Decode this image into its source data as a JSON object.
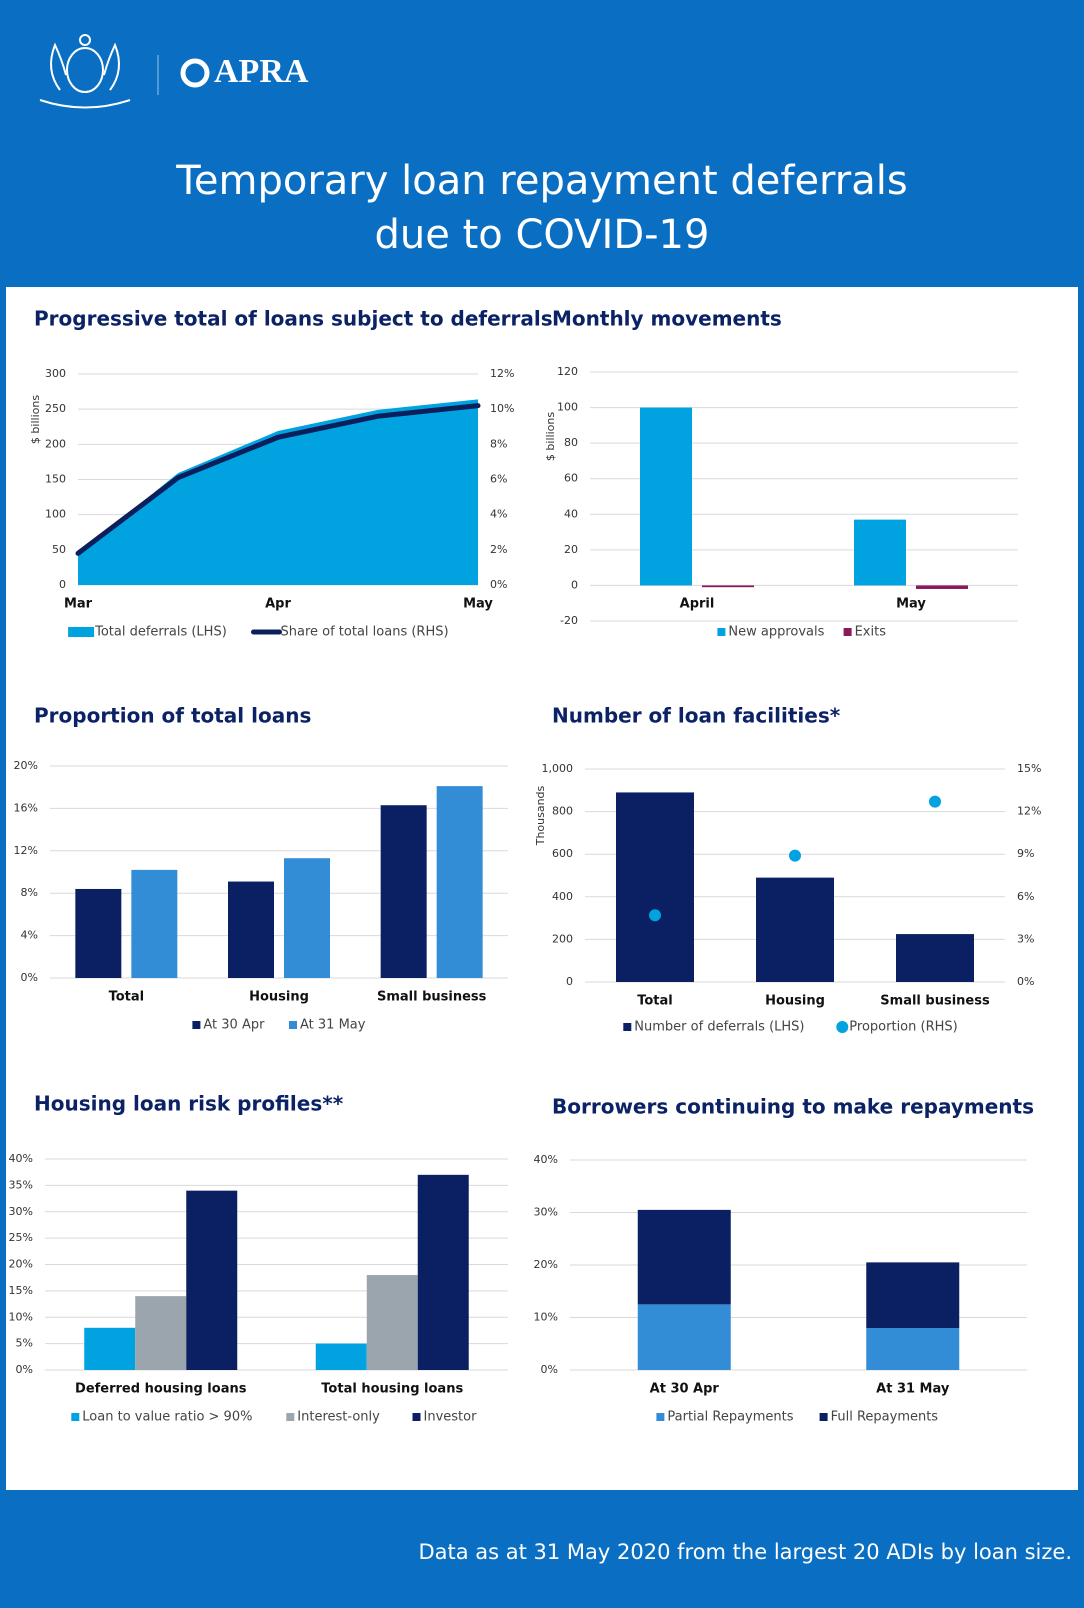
{
  "header": {
    "logo": "APRA",
    "title": [
      "Temporary loan repayment deferrals",
      "due to COVID-19"
    ]
  },
  "footer": "Data as at 31 May 2020 from the largest 20 ADIs by loan size.",
  "chart_data": [
    {
      "type": "combo",
      "title": "Progressive total of loans subject to deferrals",
      "y_label": "$ billions",
      "categories": [
        "Mar",
        null,
        "Apr",
        null,
        "May"
      ],
      "series": [
        {
          "name": "Total deferrals (LHS)",
          "type": "area",
          "color": "#00a3e0",
          "values": [
            44,
            159,
            219,
            249,
            264
          ]
        },
        {
          "name": "Share of total loans (RHS)",
          "type": "line",
          "axis": "y2",
          "color": "#0b1f5c",
          "values": [
            1.8,
            6.1,
            8.4,
            9.6,
            10.2
          ]
        }
      ],
      "ylim": [
        0,
        300
      ],
      "yticks": [
        0,
        50,
        100,
        150,
        200,
        250,
        300
      ],
      "y2lim": [
        0,
        12
      ],
      "y2ticks": [
        {
          "value": 0,
          "label": "0%"
        },
        {
          "value": 2,
          "label": "2%"
        },
        {
          "value": 4,
          "label": "4%"
        },
        {
          "value": 6,
          "label": "6%"
        },
        {
          "value": 8,
          "label": "8%"
        },
        {
          "value": 10,
          "label": "10%"
        },
        {
          "value": 12,
          "label": "12%"
        }
      ],
      "grid": true
    },
    {
      "type": "bar",
      "title": "Monthly movements",
      "y_label": "$ billions",
      "categories": [
        "April",
        "May"
      ],
      "series": [
        {
          "name": "New approvals",
          "color": "#00a3e0",
          "values": [
            100,
            37
          ]
        },
        {
          "name": "Exits",
          "color": "#8b1a5c",
          "values": [
            -1,
            -2
          ]
        }
      ],
      "ylim": [
        -20,
        120
      ],
      "yticks": [
        -20,
        0,
        20,
        40,
        60,
        80,
        100,
        120
      ],
      "grid": true
    },
    {
      "type": "bar",
      "title": "Proportion of total loans",
      "categories": [
        "Total",
        "Housing",
        "Small business"
      ],
      "series": [
        {
          "name": "At 30 Apr",
          "color": "#0b2062",
          "values": [
            8.4,
            9.1,
            16.3
          ]
        },
        {
          "name": "At 31 May",
          "color": "#338dd6",
          "values": [
            10.2,
            11.3,
            18.1
          ]
        }
      ],
      "ylim": [
        0,
        20
      ],
      "yticks": [
        {
          "value": 0,
          "label": "0%"
        },
        {
          "value": 4,
          "label": "4%"
        },
        {
          "value": 8,
          "label": "8%"
        },
        {
          "value": 12,
          "label": "12%"
        },
        {
          "value": 16,
          "label": "16%"
        },
        {
          "value": 20,
          "label": "20%"
        }
      ],
      "grid": true
    },
    {
      "type": "combo",
      "title": "Number of loan facilities*",
      "y_label": "Thousands",
      "categories": [
        "Total",
        "Housing",
        "Small business"
      ],
      "series": [
        {
          "name": "Number of deferrals (LHS)",
          "type": "bar",
          "color": "#0b2062",
          "values": [
            890,
            490,
            225
          ]
        },
        {
          "name": "Proportion (RHS)",
          "type": "scatter",
          "axis": "y2",
          "color": "#00a3e0",
          "values": [
            4.7,
            8.9,
            12.7
          ]
        }
      ],
      "ylim": [
        0,
        1000
      ],
      "yticks": [
        0,
        200,
        400,
        600,
        800,
        {
          "value": 1000,
          "label": "1,000"
        }
      ],
      "y2lim": [
        0,
        15
      ],
      "y2ticks": [
        {
          "value": 0,
          "label": "0%"
        },
        {
          "value": 3,
          "label": "3%"
        },
        {
          "value": 6,
          "label": "6%"
        },
        {
          "value": 9,
          "label": "9%"
        },
        {
          "value": 12,
          "label": "12%"
        },
        {
          "value": 15,
          "label": "15%"
        }
      ],
      "grid": true
    },
    {
      "type": "bar",
      "title": "Housing loan risk profiles**",
      "categories": [
        "Deferred housing loans",
        "Total housing loans"
      ],
      "series": [
        {
          "name": "Loan to value ratio > 90%",
          "color": "#00a3e0",
          "values": [
            8,
            5
          ]
        },
        {
          "name": "Interest-only",
          "color": "#9aa5ad",
          "values": [
            14,
            18
          ]
        },
        {
          "name": "Investor",
          "color": "#0b2062",
          "values": [
            34,
            37
          ]
        }
      ],
      "ylim": [
        0,
        40
      ],
      "yticks": [
        {
          "value": 0,
          "label": "0%"
        },
        {
          "value": 5,
          "label": "5%"
        },
        {
          "value": 10,
          "label": "10%"
        },
        {
          "value": 15,
          "label": "15%"
        },
        {
          "value": 20,
          "label": "20%"
        },
        {
          "value": 25,
          "label": "25%"
        },
        {
          "value": 30,
          "label": "30%"
        },
        {
          "value": 35,
          "label": "35%"
        },
        {
          "value": 40,
          "label": "40%"
        }
      ],
      "grid": true
    },
    {
      "type": "stacked-bar",
      "title": "Borrowers continuing to make repayments",
      "categories": [
        "At 30 Apr",
        "At 31 May"
      ],
      "series": [
        {
          "name": "Partial Repayments",
          "color": "#338dd6",
          "values": [
            12.5,
            8
          ]
        },
        {
          "name": "Full Repayments",
          "color": "#0b2062",
          "values": [
            18,
            12.5
          ]
        }
      ],
      "ylim": [
        0,
        40
      ],
      "yticks": [
        {
          "value": 0,
          "label": "0%"
        },
        {
          "value": 10,
          "label": "10%"
        },
        {
          "value": 20,
          "label": "20%"
        },
        {
          "value": 30,
          "label": "30%"
        },
        {
          "value": 40,
          "label": "40%"
        }
      ],
      "grid": true
    }
  ]
}
